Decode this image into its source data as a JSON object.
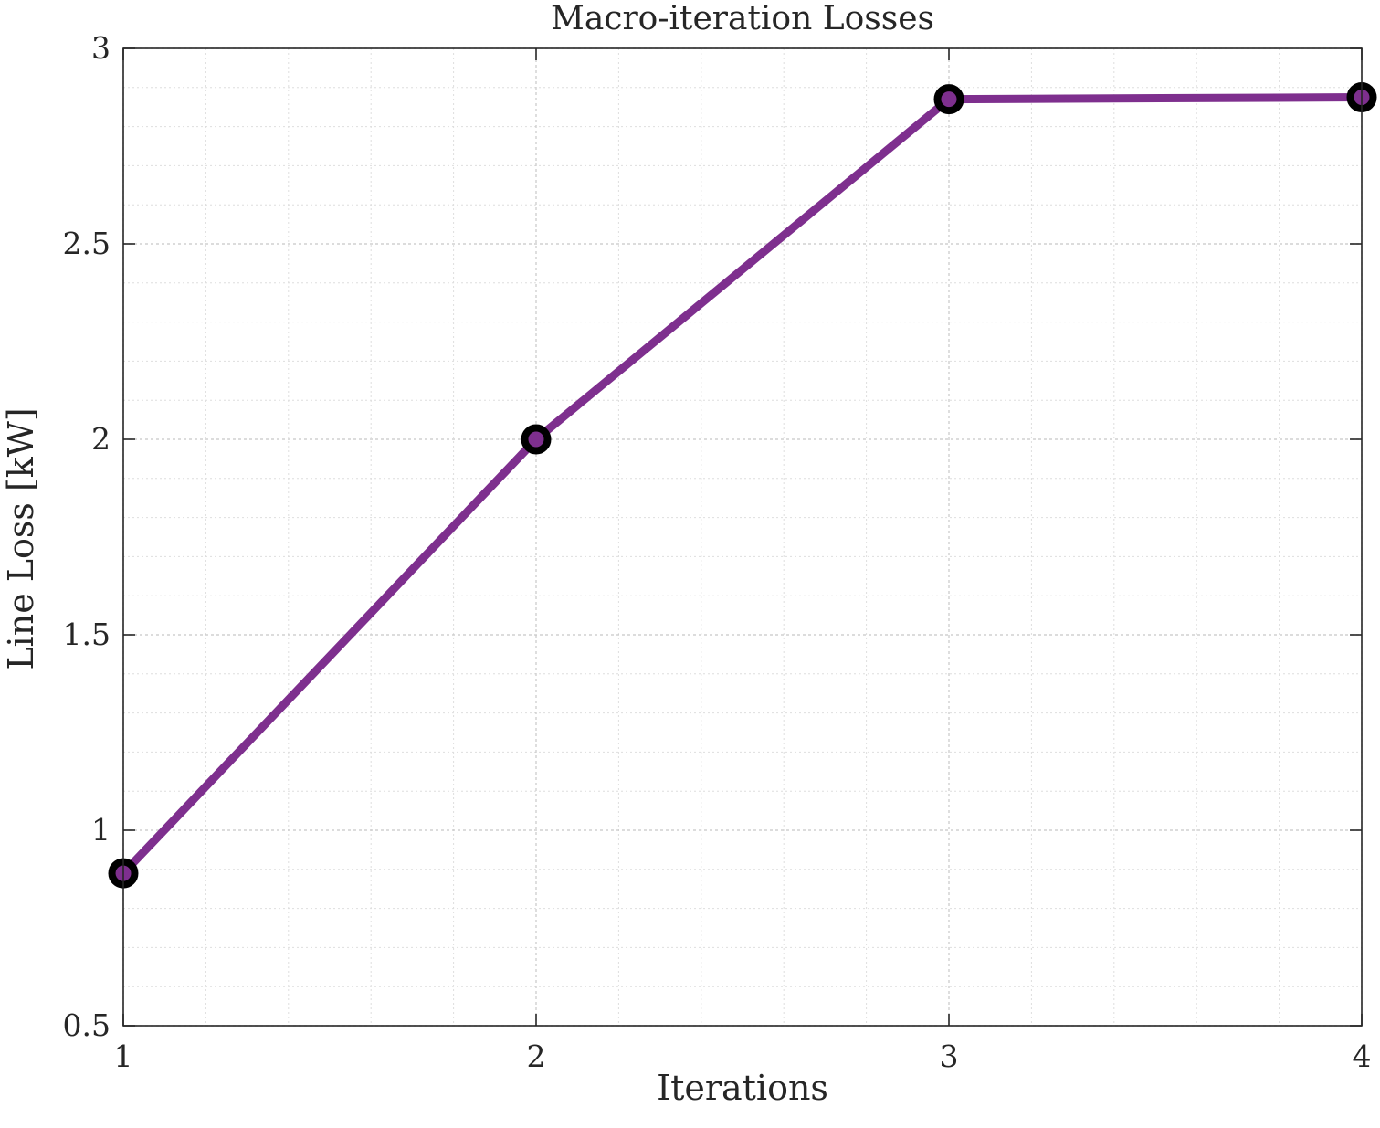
{
  "chart_data": {
    "type": "line",
    "title": "Macro-iteration Losses",
    "xlabel": "Iterations",
    "ylabel": "Line Loss [kW]",
    "x": [
      1,
      2,
      3,
      4
    ],
    "series": [
      {
        "values": [
          0.89,
          2.0,
          2.87,
          2.875
        ],
        "color": "#7E2F8E",
        "marker": "circle",
        "marker_edge_color": "#000000"
      }
    ],
    "xlim": [
      1,
      4
    ],
    "ylim": [
      0.5,
      3
    ],
    "xticks": [
      1,
      2,
      3,
      4
    ],
    "xtick_labels": [
      "1",
      "2",
      "3",
      "4"
    ],
    "yticks": [
      0.5,
      1,
      1.5,
      2,
      2.5,
      3
    ],
    "ytick_labels": [
      "0.5",
      "1",
      "1.5",
      "2",
      "2.5",
      "3"
    ],
    "grid": true,
    "minor_grid": true
  }
}
